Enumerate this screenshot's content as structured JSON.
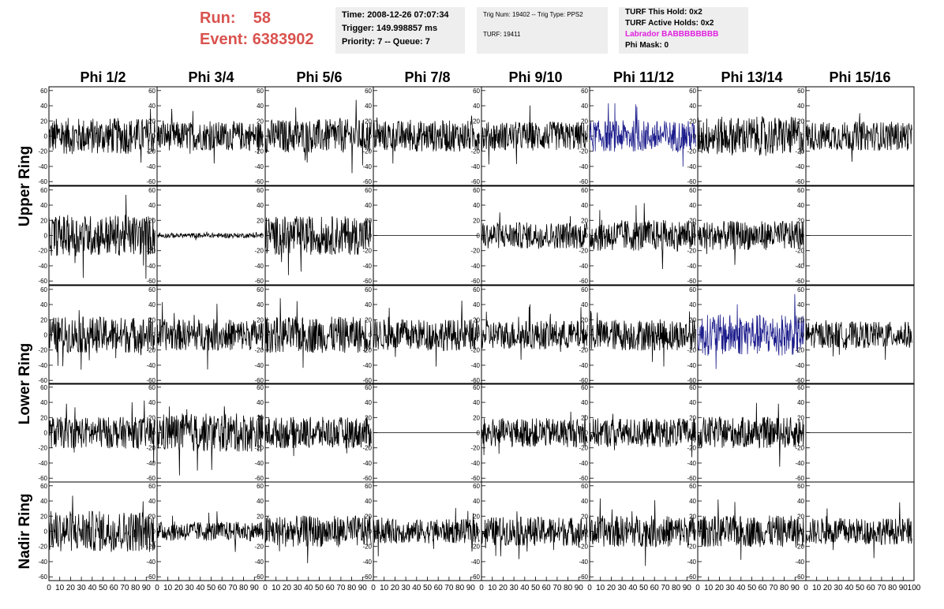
{
  "run": {
    "label": "Run:",
    "value": "58"
  },
  "event": {
    "label": "Event:",
    "value": "6383902"
  },
  "time_box": {
    "time": "Time: 2008-12-26 07:07:34",
    "trigger": "Trigger: 149.998857 ms",
    "priority": "Priority: 7 -- Queue: 7"
  },
  "trig_box": {
    "trig": "Trig Num: 19402 -- Trig Type: PPS2",
    "turf": "TURF: 19411"
  },
  "turf_box": {
    "this_hold": "TURF This Hold: 0x2",
    "active_holds": "TURF Active Holds: 0x2",
    "labrador": "Labrador BABBBBBBBB",
    "phi_mask": "Phi Mask: 0"
  },
  "columns": [
    "Phi 1/2",
    "Phi 3/4",
    "Phi 5/6",
    "Phi 7/8",
    "Phi 9/10",
    "Phi 11/12",
    "Phi 13/14",
    "Phi 15/16"
  ],
  "ring_labels": [
    "Upper Ring",
    "Lower Ring",
    "Nadir Ring"
  ],
  "colors": {
    "trace": "#000000",
    "highlight": "#1c1c8c",
    "run_text": "#d9534f",
    "labrador": "#e020e0",
    "info_bg": "#eeeeee"
  },
  "chart_data": {
    "type": "line",
    "rows": 5,
    "cols": 8,
    "xlim": [
      0,
      100
    ],
    "ylim": [
      -65,
      65
    ],
    "y_ticks": [
      -60,
      -40,
      -20,
      0,
      20,
      40,
      60
    ],
    "x_ticks": [
      0,
      10,
      20,
      30,
      40,
      50,
      60,
      70,
      80,
      90,
      100
    ],
    "amplitude": [
      [
        15,
        12,
        14,
        13,
        12,
        13,
        16,
        12
      ],
      [
        17,
        2,
        16,
        0,
        11,
        13,
        12,
        0
      ],
      [
        15,
        13,
        15,
        13,
        12,
        13,
        17,
        11
      ],
      [
        13,
        16,
        13,
        0,
        12,
        12,
        13,
        0
      ],
      [
        17,
        8,
        13,
        10,
        12,
        13,
        13,
        11
      ]
    ],
    "highlighted": [
      [
        0,
        5
      ],
      [
        2,
        6
      ]
    ],
    "flat": [
      [
        1,
        3
      ],
      [
        1,
        7
      ],
      [
        3,
        3
      ],
      [
        3,
        7
      ]
    ]
  }
}
